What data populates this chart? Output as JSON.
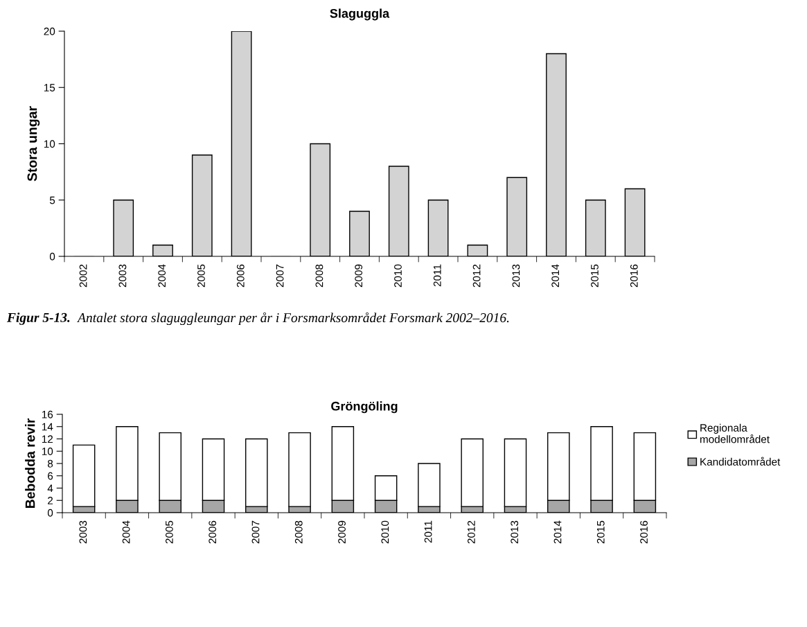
{
  "chart_data": [
    {
      "type": "bar",
      "title": "Slaguggla",
      "ylabel": "Stora ungar",
      "categories": [
        "2002",
        "2003",
        "2004",
        "2005",
        "2006",
        "2007",
        "2008",
        "2009",
        "2010",
        "2011",
        "2012",
        "2013",
        "2014",
        "2015",
        "2016"
      ],
      "series": [
        {
          "color": "#d3d3d3",
          "values": [
            0,
            5,
            1,
            9,
            20,
            0,
            10,
            4,
            8,
            5,
            1,
            7,
            18,
            5,
            6
          ]
        }
      ],
      "ylim": [
        0,
        20
      ],
      "yticks": [
        0,
        5,
        10,
        15,
        20
      ],
      "grid": false,
      "legend": false,
      "annotations": [
        "Figur 5-13.",
        "Antalet stora slaguggleungar per år i Forsmarksområdet Forsmark 2002–2016."
      ]
    },
    {
      "type": "bar",
      "title": "Gröngöling",
      "ylabel": "Bebodda revir",
      "stacked": true,
      "categories": [
        "2003",
        "2004",
        "2005",
        "2006",
        "2007",
        "2008",
        "2009",
        "2010",
        "2011",
        "2012",
        "2013",
        "2014",
        "2015",
        "2016"
      ],
      "series": [
        {
          "name": "Kandidatområdet",
          "color": "#a6a6a6",
          "values": [
            1,
            2,
            2,
            2,
            1,
            1,
            2,
            2,
            1,
            1,
            1,
            2,
            2,
            2
          ]
        },
        {
          "name": "Regionala\nmodellområdet",
          "color": "#ffffff",
          "values": [
            10,
            12,
            11,
            10,
            11,
            12,
            12,
            4,
            7,
            11,
            11,
            11,
            12,
            11
          ]
        }
      ],
      "ylim": [
        0,
        16
      ],
      "yticks": [
        0,
        2,
        4,
        6,
        8,
        10,
        12,
        14,
        16
      ],
      "grid": false,
      "legend": "right"
    }
  ]
}
